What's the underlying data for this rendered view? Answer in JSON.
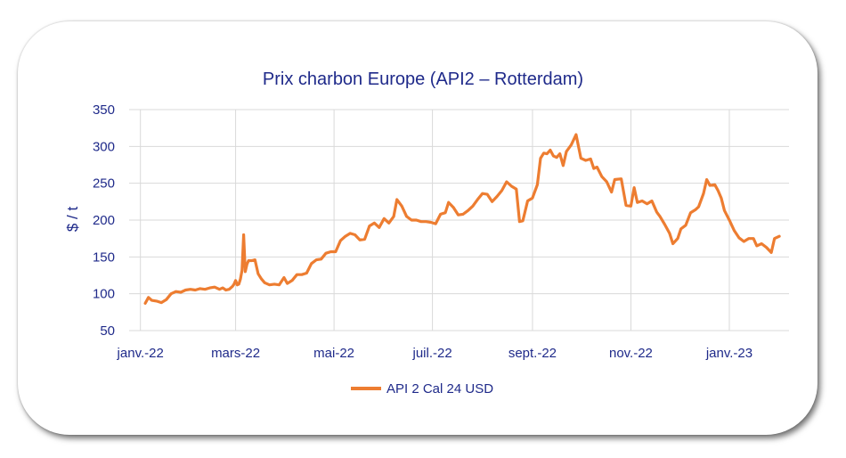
{
  "chart_data": {
    "type": "line",
    "title": "Prix charbon Europe (API2 – Rotterdam)",
    "xlabel": "",
    "ylabel": "$ / t",
    "ylim": [
      50,
      350
    ],
    "y_ticks": [
      50,
      100,
      150,
      200,
      250,
      300,
      350
    ],
    "x_ticks": [
      {
        "date": "2022-01-01",
        "label": "janv.-22"
      },
      {
        "date": "2022-03-01",
        "label": "mars-22"
      },
      {
        "date": "2022-05-01",
        "label": "mai-22"
      },
      {
        "date": "2022-07-01",
        "label": "juil.-22"
      },
      {
        "date": "2022-09-01",
        "label": "sept.-22"
      },
      {
        "date": "2022-11-01",
        "label": "nov.-22"
      },
      {
        "date": "2023-01-01",
        "label": "janv.-23"
      }
    ],
    "grid": true,
    "legend_position": "bottom",
    "series": [
      {
        "name": "API 2 Cal 24 USD",
        "color": "#ed7d31",
        "points": [
          [
            "2022-01-04",
            87
          ],
          [
            "2022-01-06",
            95
          ],
          [
            "2022-01-08",
            91
          ],
          [
            "2022-01-11",
            90
          ],
          [
            "2022-01-14",
            88
          ],
          [
            "2022-01-17",
            92
          ],
          [
            "2022-01-20",
            100
          ],
          [
            "2022-01-23",
            103
          ],
          [
            "2022-01-26",
            102
          ],
          [
            "2022-01-29",
            105
          ],
          [
            "2022-02-01",
            106
          ],
          [
            "2022-02-04",
            105
          ],
          [
            "2022-02-07",
            107
          ],
          [
            "2022-02-10",
            106
          ],
          [
            "2022-02-13",
            108
          ],
          [
            "2022-02-16",
            109
          ],
          [
            "2022-02-19",
            106
          ],
          [
            "2022-02-21",
            108
          ],
          [
            "2022-02-23",
            105
          ],
          [
            "2022-02-25",
            106
          ],
          [
            "2022-02-27",
            110
          ],
          [
            "2022-02-28",
            113
          ],
          [
            "2022-03-01",
            118
          ],
          [
            "2022-03-02",
            112
          ],
          [
            "2022-03-03",
            113
          ],
          [
            "2022-03-04",
            120
          ],
          [
            "2022-03-05",
            132
          ],
          [
            "2022-03-06",
            180
          ],
          [
            "2022-03-07",
            130
          ],
          [
            "2022-03-08",
            140
          ],
          [
            "2022-03-09",
            145
          ],
          [
            "2022-03-11",
            145
          ],
          [
            "2022-03-13",
            146
          ],
          [
            "2022-03-15",
            127
          ],
          [
            "2022-03-17",
            120
          ],
          [
            "2022-03-19",
            115
          ],
          [
            "2022-03-22",
            112
          ],
          [
            "2022-03-25",
            113
          ],
          [
            "2022-03-28",
            112
          ],
          [
            "2022-03-31",
            122
          ],
          [
            "2022-04-02",
            114
          ],
          [
            "2022-04-05",
            118
          ],
          [
            "2022-04-08",
            126
          ],
          [
            "2022-04-11",
            126
          ],
          [
            "2022-04-14",
            128
          ],
          [
            "2022-04-17",
            141
          ],
          [
            "2022-04-20",
            146
          ],
          [
            "2022-04-23",
            147
          ],
          [
            "2022-04-26",
            155
          ],
          [
            "2022-04-29",
            157
          ],
          [
            "2022-05-02",
            157
          ],
          [
            "2022-05-05",
            172
          ],
          [
            "2022-05-08",
            178
          ],
          [
            "2022-05-11",
            182
          ],
          [
            "2022-05-14",
            180
          ],
          [
            "2022-05-17",
            173
          ],
          [
            "2022-05-20",
            174
          ],
          [
            "2022-05-23",
            192
          ],
          [
            "2022-05-26",
            196
          ],
          [
            "2022-05-29",
            190
          ],
          [
            "2022-06-01",
            202
          ],
          [
            "2022-06-04",
            196
          ],
          [
            "2022-06-07",
            205
          ],
          [
            "2022-06-09",
            228
          ],
          [
            "2022-06-12",
            219
          ],
          [
            "2022-06-15",
            205
          ],
          [
            "2022-06-18",
            200
          ],
          [
            "2022-06-21",
            200
          ],
          [
            "2022-06-24",
            198
          ],
          [
            "2022-06-27",
            198
          ],
          [
            "2022-06-30",
            197
          ],
          [
            "2022-07-03",
            195
          ],
          [
            "2022-07-06",
            208
          ],
          [
            "2022-07-09",
            210
          ],
          [
            "2022-07-11",
            224
          ],
          [
            "2022-07-14",
            217
          ],
          [
            "2022-07-17",
            207
          ],
          [
            "2022-07-20",
            208
          ],
          [
            "2022-07-23",
            213
          ],
          [
            "2022-07-26",
            219
          ],
          [
            "2022-07-29",
            228
          ],
          [
            "2022-08-01",
            236
          ],
          [
            "2022-08-04",
            235
          ],
          [
            "2022-08-07",
            225
          ],
          [
            "2022-08-10",
            232
          ],
          [
            "2022-08-13",
            240
          ],
          [
            "2022-08-16",
            252
          ],
          [
            "2022-08-19",
            246
          ],
          [
            "2022-08-22",
            242
          ],
          [
            "2022-08-24",
            198
          ],
          [
            "2022-08-26",
            199
          ],
          [
            "2022-08-29",
            226
          ],
          [
            "2022-09-01",
            230
          ],
          [
            "2022-09-04",
            248
          ],
          [
            "2022-09-06",
            284
          ],
          [
            "2022-09-08",
            291
          ],
          [
            "2022-09-10",
            290
          ],
          [
            "2022-09-12",
            295
          ],
          [
            "2022-09-14",
            287
          ],
          [
            "2022-09-16",
            285
          ],
          [
            "2022-09-18",
            290
          ],
          [
            "2022-09-20",
            274
          ],
          [
            "2022-09-22",
            293
          ],
          [
            "2022-09-25",
            302
          ],
          [
            "2022-09-28",
            316
          ],
          [
            "2022-10-01",
            284
          ],
          [
            "2022-10-04",
            281
          ],
          [
            "2022-10-07",
            283
          ],
          [
            "2022-10-09",
            270
          ],
          [
            "2022-10-11",
            272
          ],
          [
            "2022-10-14",
            259
          ],
          [
            "2022-10-17",
            252
          ],
          [
            "2022-10-20",
            238
          ],
          [
            "2022-10-22",
            255
          ],
          [
            "2022-10-26",
            256
          ],
          [
            "2022-10-29",
            220
          ],
          [
            "2022-11-01",
            219
          ],
          [
            "2022-11-03",
            244
          ],
          [
            "2022-11-05",
            224
          ],
          [
            "2022-11-08",
            226
          ],
          [
            "2022-11-11",
            222
          ],
          [
            "2022-11-14",
            226
          ],
          [
            "2022-11-17",
            211
          ],
          [
            "2022-11-19",
            205
          ],
          [
            "2022-11-22",
            194
          ],
          [
            "2022-11-25",
            182
          ],
          [
            "2022-11-27",
            168
          ],
          [
            "2022-11-30",
            175
          ],
          [
            "2022-12-02",
            188
          ],
          [
            "2022-12-05",
            193
          ],
          [
            "2022-12-08",
            210
          ],
          [
            "2022-12-11",
            214
          ],
          [
            "2022-12-13",
            218
          ],
          [
            "2022-12-16",
            236
          ],
          [
            "2022-12-18",
            255
          ],
          [
            "2022-12-20",
            247
          ],
          [
            "2022-12-23",
            248
          ],
          [
            "2022-12-25",
            240
          ],
          [
            "2022-12-27",
            230
          ],
          [
            "2022-12-29",
            213
          ],
          [
            "2023-01-01",
            200
          ],
          [
            "2023-01-04",
            186
          ],
          [
            "2023-01-07",
            176
          ],
          [
            "2023-01-10",
            171
          ],
          [
            "2023-01-13",
            175
          ],
          [
            "2023-01-16",
            175
          ],
          [
            "2023-01-18",
            165
          ],
          [
            "2023-01-21",
            168
          ],
          [
            "2023-01-24",
            163
          ],
          [
            "2023-01-27",
            156
          ],
          [
            "2023-01-29",
            175
          ],
          [
            "2023-02-01",
            178
          ]
        ]
      }
    ]
  }
}
